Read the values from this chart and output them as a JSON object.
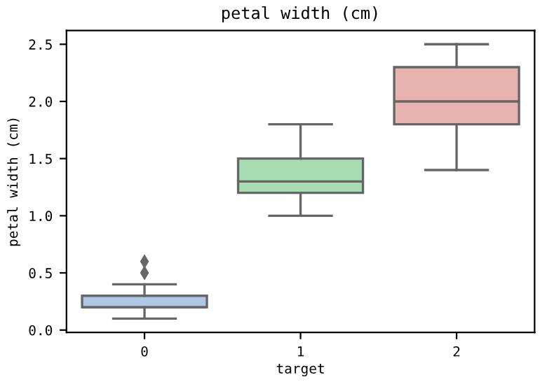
{
  "chart_data": {
    "type": "box",
    "title": "petal width (cm)",
    "xlabel": "target",
    "ylabel": "petal width (cm)",
    "categories": [
      "0",
      "1",
      "2"
    ],
    "colors": [
      "#aec8e6",
      "#a7dcb2",
      "#e8b3ae"
    ],
    "boxes": [
      {
        "low": 0.1,
        "q1": 0.2,
        "median": 0.2,
        "q3": 0.3,
        "high": 0.4,
        "outliers": [
          0.5,
          0.6
        ]
      },
      {
        "low": 1.0,
        "q1": 1.2,
        "median": 1.3,
        "q3": 1.5,
        "high": 1.8
      },
      {
        "low": 1.4,
        "q1": 1.8,
        "median": 2.0,
        "q3": 2.3,
        "high": 2.5
      }
    ],
    "ylim": [
      -0.02,
      2.62
    ],
    "yticks": [
      {
        "value": 0,
        "label": "0.0"
      },
      0.5,
      {
        "value": 1,
        "label": "1.0"
      },
      1.5,
      {
        "value": 2,
        "label": "2.0"
      },
      2.5
    ],
    "marker": "diamond",
    "grid": false
  }
}
